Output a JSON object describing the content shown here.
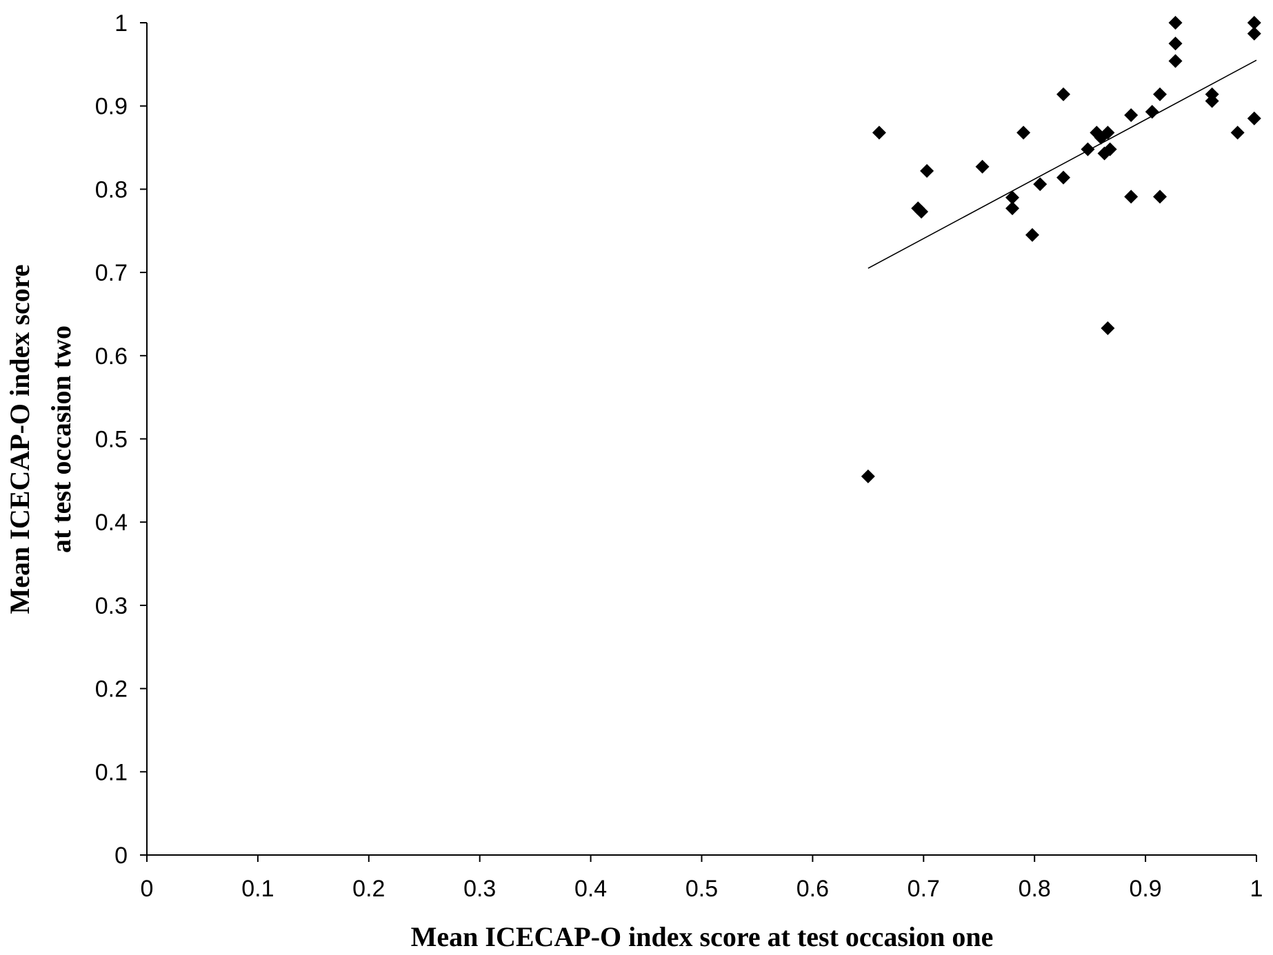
{
  "chart_data": {
    "type": "scatter",
    "xlabel": "Mean ICECAP-O index score at test occasion one",
    "ylabel_lines": [
      "Mean ICECAP-O index score",
      "at test occasion two"
    ],
    "xlim": [
      0,
      1
    ],
    "ylim": [
      0,
      1
    ],
    "x_ticks": [
      "0",
      "0.1",
      "0.2",
      "0.3",
      "0.4",
      "0.5",
      "0.6",
      "0.7",
      "0.8",
      "0.9",
      "1"
    ],
    "y_ticks": [
      "0",
      "0.1",
      "0.2",
      "0.3",
      "0.4",
      "0.5",
      "0.6",
      "0.7",
      "0.8",
      "0.9",
      "1"
    ],
    "grid": false,
    "marker": "diamond",
    "marker_color": "#000000",
    "trendline": {
      "type": "linear",
      "x": [
        0.65,
        1.0
      ],
      "y": [
        0.705,
        0.955
      ]
    },
    "points": [
      [
        0.65,
        0.455
      ],
      [
        0.66,
        0.868
      ],
      [
        0.695,
        0.777
      ],
      [
        0.698,
        0.773
      ],
      [
        0.703,
        0.822
      ],
      [
        0.753,
        0.827
      ],
      [
        0.78,
        0.79
      ],
      [
        0.78,
        0.777
      ],
      [
        0.79,
        0.868
      ],
      [
        0.798,
        0.745
      ],
      [
        0.805,
        0.806
      ],
      [
        0.826,
        0.914
      ],
      [
        0.826,
        0.814
      ],
      [
        0.848,
        0.848
      ],
      [
        0.856,
        0.868
      ],
      [
        0.86,
        0.862
      ],
      [
        0.863,
        0.843
      ],
      [
        0.866,
        0.868
      ],
      [
        0.868,
        0.848
      ],
      [
        0.866,
        0.633
      ],
      [
        0.887,
        0.889
      ],
      [
        0.887,
        0.791
      ],
      [
        0.906,
        0.893
      ],
      [
        0.913,
        0.914
      ],
      [
        0.913,
        0.791
      ],
      [
        0.927,
        1.0
      ],
      [
        0.927,
        0.975
      ],
      [
        0.927,
        0.954
      ],
      [
        0.96,
        0.914
      ],
      [
        0.96,
        0.906
      ],
      [
        0.983,
        0.868
      ],
      [
        0.998,
        1.0
      ],
      [
        0.998,
        0.987
      ],
      [
        0.998,
        0.885
      ]
    ]
  }
}
